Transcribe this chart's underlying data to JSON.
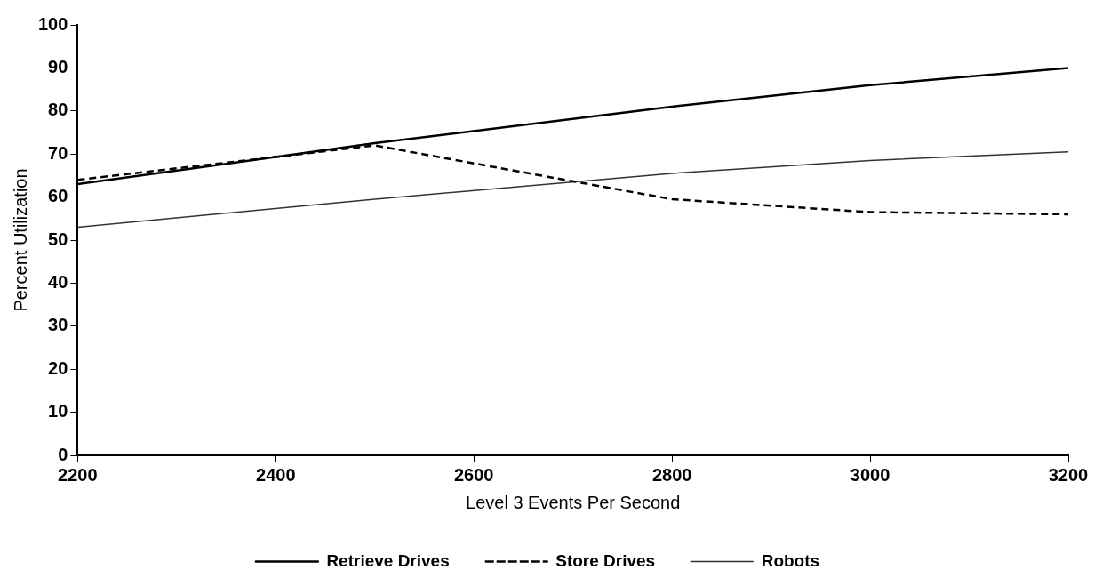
{
  "chart_data": {
    "type": "line",
    "xlabel": "Level 3 Events Per Second",
    "ylabel": "Percent Utilization",
    "x": [
      2200,
      2500,
      2800,
      3000,
      3200
    ],
    "series": [
      {
        "name": "Retrieve Drives",
        "color": "#000000",
        "values": [
          63,
          72.5,
          81,
          86,
          90
        ],
        "line_style": "solid"
      },
      {
        "name": "Store Drives",
        "color": "#000000",
        "values": [
          64,
          72,
          59.5,
          56.5,
          56
        ],
        "line_style": "dashed"
      },
      {
        "name": "Robots",
        "color": "#333333",
        "values": [
          53,
          59.5,
          65.5,
          68.5,
          70.5
        ],
        "line_style": "solid"
      }
    ],
    "xlim": [
      2200,
      3200
    ],
    "xticks": [
      2200,
      2400,
      2600,
      2800,
      3000,
      3200
    ],
    "ylim": [
      0,
      100
    ],
    "yticks": [
      0,
      10,
      20,
      30,
      40,
      50,
      60,
      70,
      80,
      90,
      100
    ],
    "grid": false,
    "legend": "bottom",
    "marker": "none"
  }
}
